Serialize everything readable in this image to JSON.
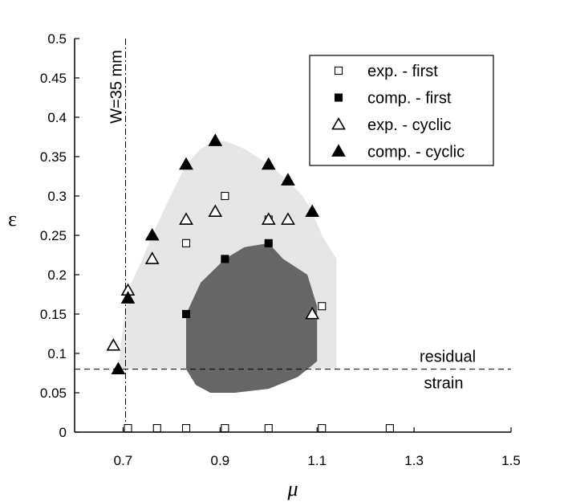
{
  "chart_data": {
    "type": "scatter",
    "xlabel": "μ",
    "ylabel": "ε",
    "xlim": [
      0.6,
      1.5
    ],
    "ylim": [
      0,
      0.5
    ],
    "x_ticks": [
      0.7,
      0.9,
      1.1,
      1.3,
      1.5
    ],
    "x_tick_labels": [
      "0.7",
      "0.9",
      "1.1",
      "1.3",
      "1.5"
    ],
    "y_ticks": [
      0,
      0.05,
      0.1,
      0.15,
      0.2,
      0.25,
      0.3,
      0.35,
      0.4,
      0.45,
      0.5
    ],
    "y_tick_labels": [
      "0",
      "0.05",
      "0.1",
      "0.15",
      "0.2",
      "0.25",
      "0.3",
      "0.35",
      "0.4",
      "0.45",
      "0.5"
    ],
    "grid": false,
    "legend_position": "top-right",
    "series": [
      {
        "name": "exp. - first",
        "marker": "square-open",
        "points": [
          [
            0.71,
            0.005
          ],
          [
            0.77,
            0.005
          ],
          [
            0.83,
            0.005
          ],
          [
            0.91,
            0.005
          ],
          [
            1.0,
            0.005
          ],
          [
            1.11,
            0.005
          ],
          [
            1.25,
            0.005
          ],
          [
            0.83,
            0.24
          ],
          [
            0.91,
            0.3
          ],
          [
            1.0,
            0.27
          ],
          [
            1.11,
            0.16
          ]
        ]
      },
      {
        "name": "comp. - first",
        "marker": "square-filled",
        "points": [
          [
            0.83,
            0.15
          ],
          [
            0.91,
            0.22
          ],
          [
            1.0,
            0.24
          ]
        ]
      },
      {
        "name": "exp. - cyclic",
        "marker": "triangle-open",
        "points": [
          [
            0.68,
            0.11
          ],
          [
            0.71,
            0.18
          ],
          [
            0.76,
            0.22
          ],
          [
            0.83,
            0.27
          ],
          [
            0.89,
            0.28
          ],
          [
            1.0,
            0.27
          ],
          [
            1.04,
            0.27
          ],
          [
            1.09,
            0.15
          ]
        ]
      },
      {
        "name": "comp. - cyclic",
        "marker": "triangle-filled",
        "points": [
          [
            0.69,
            0.08
          ],
          [
            0.71,
            0.17
          ],
          [
            0.76,
            0.25
          ],
          [
            0.83,
            0.34
          ],
          [
            0.89,
            0.37
          ],
          [
            1.0,
            0.34
          ],
          [
            1.04,
            0.32
          ],
          [
            1.09,
            0.28
          ]
        ]
      }
    ],
    "regions": [
      {
        "name": "cyclic-region",
        "color": "#e6e6e6",
        "polygon": [
          [
            0.69,
            0.08
          ],
          [
            0.7,
            0.135
          ],
          [
            0.71,
            0.17
          ],
          [
            0.71,
            0.18
          ],
          [
            0.74,
            0.22
          ],
          [
            0.76,
            0.25
          ],
          [
            0.79,
            0.29
          ],
          [
            0.83,
            0.34
          ],
          [
            0.86,
            0.36
          ],
          [
            0.89,
            0.37
          ],
          [
            0.91,
            0.37
          ],
          [
            0.95,
            0.36
          ],
          [
            1.0,
            0.34
          ],
          [
            1.04,
            0.32
          ],
          [
            1.07,
            0.3
          ],
          [
            1.09,
            0.28
          ],
          [
            1.11,
            0.25
          ],
          [
            1.14,
            0.22
          ],
          [
            1.14,
            0.08
          ]
        ]
      },
      {
        "name": "first-region",
        "color": "#666666",
        "polygon": [
          [
            0.83,
            0.08
          ],
          [
            0.83,
            0.15
          ],
          [
            0.86,
            0.19
          ],
          [
            0.91,
            0.22
          ],
          [
            0.95,
            0.235
          ],
          [
            1.0,
            0.24
          ],
          [
            1.03,
            0.22
          ],
          [
            1.08,
            0.2
          ],
          [
            1.1,
            0.16
          ],
          [
            1.1,
            0.09
          ],
          [
            1.09,
            0.085
          ],
          [
            1.06,
            0.07
          ],
          [
            1.0,
            0.055
          ],
          [
            0.93,
            0.05
          ],
          [
            0.88,
            0.05
          ],
          [
            0.85,
            0.06
          ],
          [
            0.83,
            0.08
          ]
        ]
      }
    ],
    "reference_lines": [
      {
        "orientation": "horizontal",
        "value": 0.08,
        "style": "dashed",
        "labels": [
          "residual",
          "strain"
        ]
      },
      {
        "orientation": "vertical",
        "value": 0.705,
        "style": "dash-dot",
        "labels": [
          "W=35 mm"
        ]
      }
    ]
  }
}
